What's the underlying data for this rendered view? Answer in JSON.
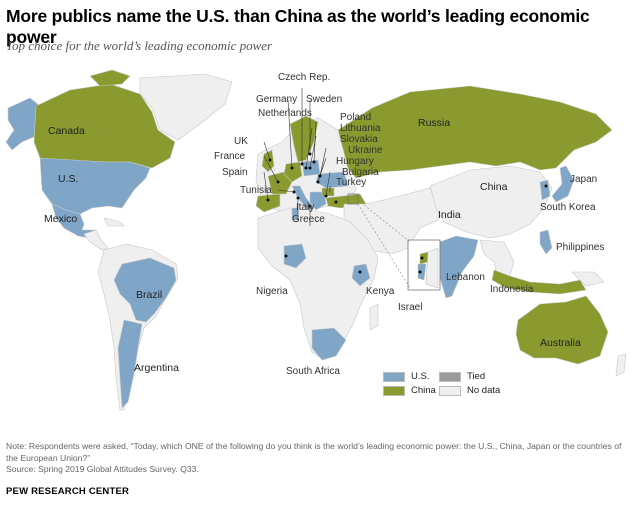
{
  "header": {
    "title": "More publics name the U.S. than China as the world’s leading economic power",
    "subtitle": "Top choice for the world’s leading economic power"
  },
  "colors": {
    "us": "#7fa6c7",
    "china": "#8a9a2e",
    "tied": "#9a9a9a",
    "no_data": "#efefef",
    "ocean": "#ffffff",
    "border": "#bdbdbd"
  },
  "legend": {
    "items": [
      {
        "label": "U.S.",
        "color": "#7fa6c7"
      },
      {
        "label": "Tied",
        "color": "#9a9a9a"
      },
      {
        "label": "China",
        "color": "#8a9a2e"
      },
      {
        "label": "No data",
        "color": "#efefef"
      }
    ]
  },
  "countries": [
    {
      "name": "Canada",
      "top_choice": "China"
    },
    {
      "name": "U.S.",
      "top_choice": "U.S."
    },
    {
      "name": "Mexico",
      "top_choice": "U.S."
    },
    {
      "name": "Brazil",
      "top_choice": "U.S."
    },
    {
      "name": "Argentina",
      "top_choice": "U.S."
    },
    {
      "name": "UK",
      "top_choice": "China"
    },
    {
      "name": "France",
      "top_choice": "China"
    },
    {
      "name": "Spain",
      "top_choice": "China"
    },
    {
      "name": "Tunisia",
      "top_choice": "U.S."
    },
    {
      "name": "Italy",
      "top_choice": "U.S."
    },
    {
      "name": "Greece",
      "top_choice": "U.S."
    },
    {
      "name": "Germany",
      "top_choice": "China"
    },
    {
      "name": "Netherlands",
      "top_choice": "China"
    },
    {
      "name": "Czech Rep.",
      "top_choice": "China"
    },
    {
      "name": "Sweden",
      "top_choice": "China"
    },
    {
      "name": "Poland",
      "top_choice": "U.S."
    },
    {
      "name": "Lithuania",
      "top_choice": "U.S."
    },
    {
      "name": "Slovakia",
      "top_choice": "China"
    },
    {
      "name": "Ukraine",
      "top_choice": "U.S."
    },
    {
      "name": "Hungary",
      "top_choice": "U.S."
    },
    {
      "name": "Bulgaria",
      "top_choice": "China"
    },
    {
      "name": "Turkey",
      "top_choice": "China"
    },
    {
      "name": "Russia",
      "top_choice": "China"
    },
    {
      "name": "China",
      "top_choice": "No data"
    },
    {
      "name": "Japan",
      "top_choice": "U.S."
    },
    {
      "name": "South Korea",
      "top_choice": "U.S."
    },
    {
      "name": "India",
      "top_choice": "U.S."
    },
    {
      "name": "Philippines",
      "top_choice": "U.S."
    },
    {
      "name": "Indonesia",
      "top_choice": "China"
    },
    {
      "name": "Australia",
      "top_choice": "China"
    },
    {
      "name": "Nigeria",
      "top_choice": "U.S."
    },
    {
      "name": "Kenya",
      "top_choice": "U.S."
    },
    {
      "name": "South Africa",
      "top_choice": "U.S."
    },
    {
      "name": "Lebanon",
      "top_choice": "China"
    },
    {
      "name": "Israel",
      "top_choice": "U.S."
    }
  ],
  "footer": {
    "note": "Note: Respondents were asked, “Today, which ONE of the following do you think is the world’s leading economic power: the U.S., China, Japan or the countries of the European Union?”",
    "source": "Source: Spring 2019 Global Attitudes Survey. Q33.",
    "org": "PEW RESEARCH CENTER"
  }
}
